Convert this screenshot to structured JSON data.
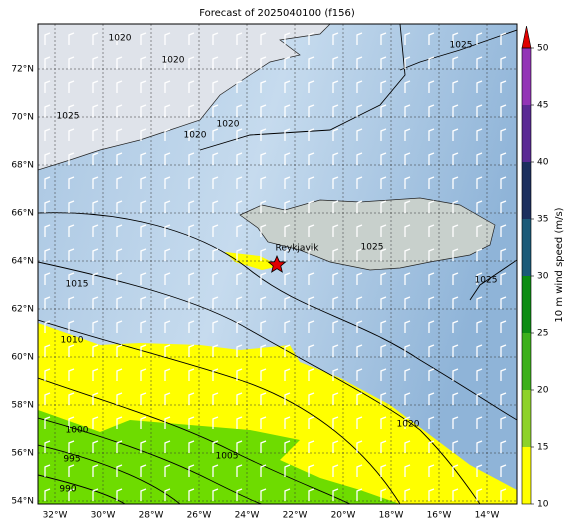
{
  "title": "Forecast of 2025040100 (f156)",
  "lat_labels": [
    "72°N",
    "70°N",
    "68°N",
    "66°N",
    "64°N",
    "62°N",
    "60°N",
    "58°N",
    "56°N",
    "54°N"
  ],
  "lon_labels": [
    "32°W",
    "30°W",
    "28°W",
    "26°W",
    "24°W",
    "22°W",
    "20°W",
    "18°W",
    "16°W",
    "14°W"
  ],
  "city": "Reykjavik",
  "contour_labels": [
    1020,
    1020,
    1025,
    1025,
    1020,
    1020,
    1025,
    1025,
    1015,
    1010,
    1000,
    995,
    990,
    1005,
    1020
  ],
  "colorbar": {
    "label": "10 m wind speed (m/s)",
    "lim": [
      10,
      50
    ],
    "ticks": [
      10,
      15,
      20,
      25,
      30,
      35,
      40,
      45,
      50
    ],
    "colors": [
      "#ffff00",
      "#8ed22a",
      "#3cb01a",
      "#0c8c12",
      "#1b5a78",
      "#1c2f5e",
      "#5a2a94",
      "#9334b6"
    ],
    "extend_color": "#e00000"
  }
}
